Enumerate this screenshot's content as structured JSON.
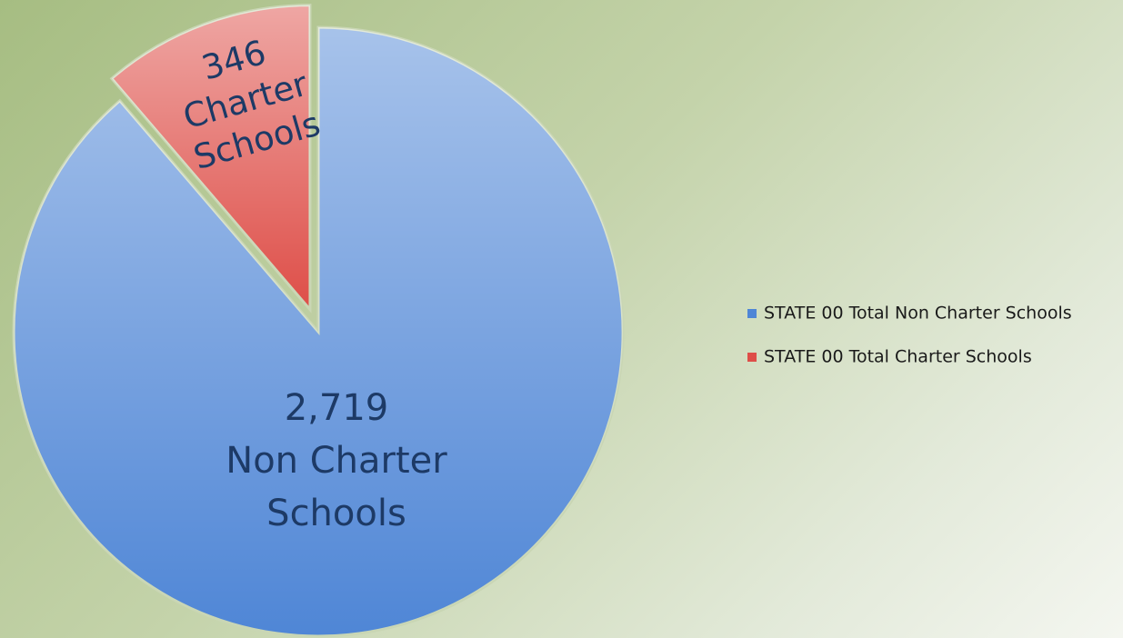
{
  "chart_data": {
    "type": "pie",
    "series": [
      {
        "name": "STATE 00 Total Non Charter Schools",
        "color": "#4f86d6",
        "values": [
          2719
        ]
      },
      {
        "name": "STATE 00 Total Charter Schools",
        "color": "#de4e48",
        "values": [
          346
        ]
      }
    ],
    "value_labels": [
      "2,719",
      "346"
    ],
    "category_labels": [
      "Non Charter Schools",
      "Charter Schools"
    ],
    "exploded": [
      false,
      true
    ],
    "legend": "right"
  }
}
